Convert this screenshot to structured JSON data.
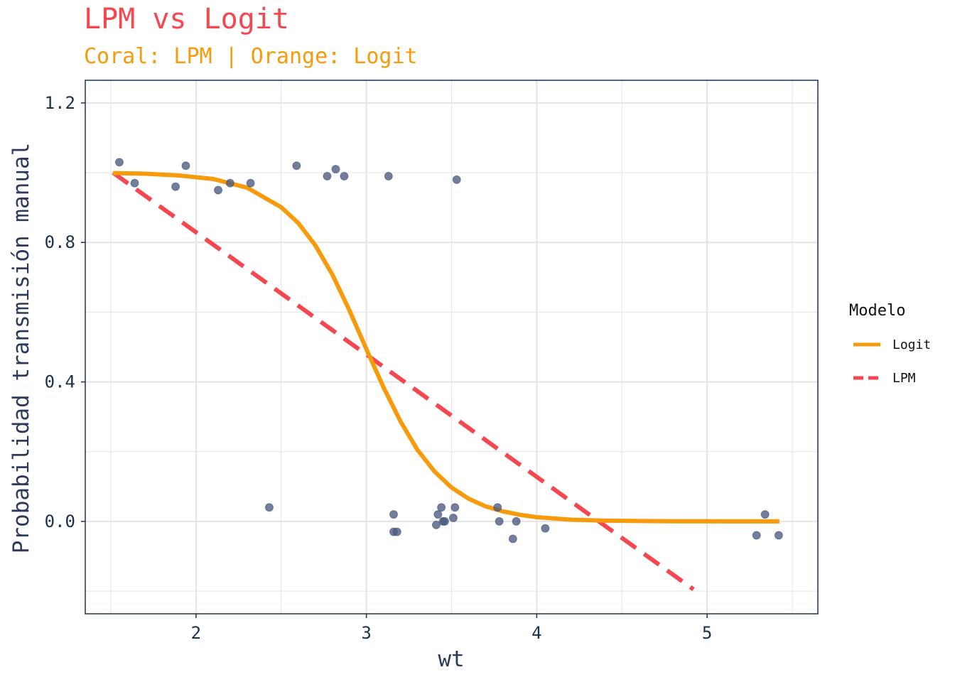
{
  "title": "LPM vs Logit",
  "subtitle": "Coral: LPM | Orange: Logit",
  "colors": {
    "lpm": "#f5474f",
    "logit": "#f79a0c",
    "points": "#4a5a80",
    "frame": "#1d3049",
    "grid": "#e4e4e4"
  },
  "chart_data": {
    "type": "scatter",
    "title": "LPM vs Logit",
    "subtitle": "Coral: LPM | Orange: Logit",
    "xlabel": "wt",
    "ylabel": "Probabilidad transmisión manual",
    "xlim": [
      1.35,
      5.65
    ],
    "ylim": [
      -0.265,
      1.265
    ],
    "x_ticks": [
      2,
      3,
      4,
      5
    ],
    "x_tick_labels": [
      "2",
      "3",
      "4",
      "5"
    ],
    "y_ticks": [
      0.0,
      0.4,
      0.8,
      1.2
    ],
    "y_tick_labels": [
      "0.0",
      "0.4",
      "0.8",
      "1.2"
    ],
    "grid": true,
    "legend": {
      "title": "Modelo",
      "position": "right",
      "entries": [
        {
          "label": "Logit",
          "style": "solid",
          "color": "#f79a0c"
        },
        {
          "label": "LPM",
          "style": "dashed",
          "color": "#f5474f"
        }
      ]
    },
    "points": [
      {
        "x": 1.55,
        "y": 1.03
      },
      {
        "x": 1.64,
        "y": 0.97
      },
      {
        "x": 1.88,
        "y": 0.96
      },
      {
        "x": 1.94,
        "y": 1.02
      },
      {
        "x": 2.13,
        "y": 0.95
      },
      {
        "x": 2.2,
        "y": 0.97
      },
      {
        "x": 2.32,
        "y": 0.97
      },
      {
        "x": 2.59,
        "y": 1.02
      },
      {
        "x": 2.77,
        "y": 0.99
      },
      {
        "x": 2.82,
        "y": 1.01
      },
      {
        "x": 2.87,
        "y": 0.99
      },
      {
        "x": 3.13,
        "y": 0.99
      },
      {
        "x": 3.53,
        "y": 0.98
      },
      {
        "x": 2.43,
        "y": 0.04
      },
      {
        "x": 3.16,
        "y": 0.02
      },
      {
        "x": 3.16,
        "y": -0.03
      },
      {
        "x": 3.18,
        "y": -0.03
      },
      {
        "x": 3.41,
        "y": -0.01
      },
      {
        "x": 3.42,
        "y": 0.02
      },
      {
        "x": 3.44,
        "y": 0.04
      },
      {
        "x": 3.45,
        "y": 0.0
      },
      {
        "x": 3.46,
        "y": 0.0
      },
      {
        "x": 3.51,
        "y": 0.01
      },
      {
        "x": 3.52,
        "y": 0.04
      },
      {
        "x": 3.77,
        "y": 0.04
      },
      {
        "x": 3.78,
        "y": 0.0
      },
      {
        "x": 3.86,
        "y": -0.05
      },
      {
        "x": 3.88,
        "y": 0.0
      },
      {
        "x": 4.05,
        "y": -0.02
      },
      {
        "x": 5.29,
        "y": -0.04
      },
      {
        "x": 5.34,
        "y": 0.02
      },
      {
        "x": 5.42,
        "y": -0.04
      }
    ],
    "series": [
      {
        "name": "LPM",
        "style": "dashed",
        "x": [
          1.513,
          4.92
        ],
        "y": [
          1.0,
          -0.195
        ]
      },
      {
        "name": "Logit",
        "style": "solid",
        "x": [
          1.513,
          1.7,
          1.9,
          2.1,
          2.3,
          2.5,
          2.6,
          2.7,
          2.8,
          2.9,
          3.0,
          3.1,
          3.2,
          3.3,
          3.4,
          3.5,
          3.6,
          3.7,
          3.8,
          3.9,
          4.0,
          4.2,
          4.4,
          4.6,
          4.8,
          5.0,
          5.2,
          5.424
        ],
        "y": [
          0.999,
          0.997,
          0.992,
          0.982,
          0.957,
          0.901,
          0.856,
          0.792,
          0.708,
          0.606,
          0.494,
          0.385,
          0.287,
          0.205,
          0.143,
          0.097,
          0.065,
          0.043,
          0.029,
          0.019,
          0.012,
          0.005,
          0.002,
          0.001,
          0.0004,
          0.0002,
          0.0001,
          0.0
        ]
      }
    ]
  }
}
